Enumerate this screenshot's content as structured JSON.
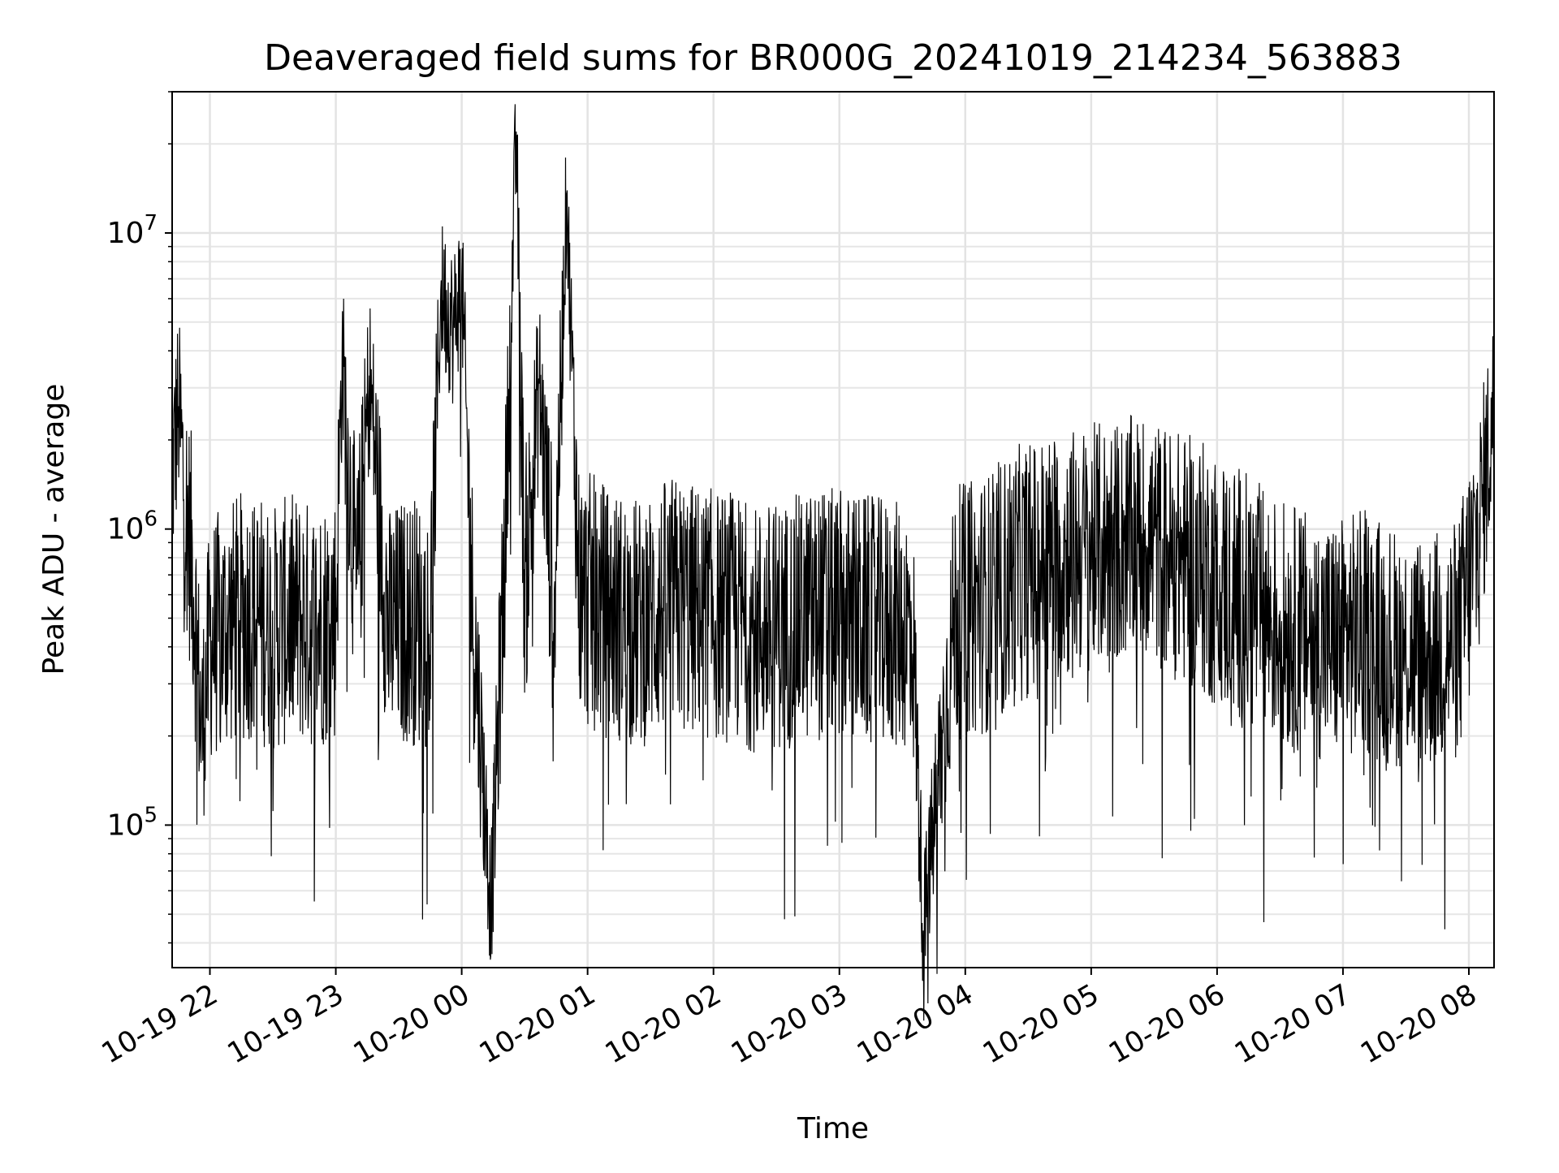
{
  "chart_data": {
    "type": "line",
    "title": "Deaveraged field sums for BR000G_20241019_214234_563883",
    "xlabel": "Time",
    "ylabel": "Peak ADU - average",
    "yscale": "log",
    "xlim": [
      "2024-10-19 21:42",
      "2024-10-20 08:12"
    ],
    "ylim": [
      33000,
      30000000
    ],
    "grid": true,
    "x_tick_labels": [
      "10-19 22",
      "10-19 23",
      "10-20 00",
      "10-20 01",
      "10-20 02",
      "10-20 03",
      "10-20 04",
      "10-20 05",
      "10-20 06",
      "10-20 07",
      "10-20 08"
    ],
    "y_tick_labels": [
      {
        "value": 100000,
        "base": "10",
        "exp": "5"
      },
      {
        "value": 1000000,
        "base": "10",
        "exp": "6"
      },
      {
        "value": 10000000,
        "base": "10",
        "exp": "7"
      }
    ],
    "series_color": "#000000",
    "series": [
      {
        "points": [
          [
            "2024-10-19 21:42",
            1500000
          ],
          [
            "2024-10-19 21:45",
            2600000
          ],
          [
            "2024-10-19 21:48",
            1300000
          ],
          [
            "2024-10-19 21:52",
            700000
          ],
          [
            "2024-10-19 21:56",
            200000
          ],
          [
            "2024-10-19 22:00",
            420000
          ],
          [
            "2024-10-19 22:10",
            480000
          ],
          [
            "2024-10-19 22:20",
            520000
          ],
          [
            "2024-10-19 22:30",
            460000
          ],
          [
            "2024-10-19 22:40",
            500000
          ],
          [
            "2024-10-19 22:50",
            470000
          ],
          [
            "2024-10-19 23:00",
            520000
          ],
          [
            "2024-10-19 23:03",
            3800000
          ],
          [
            "2024-10-19 23:10",
            560000
          ],
          [
            "2024-10-19 23:16",
            3300000
          ],
          [
            "2024-10-19 23:25",
            450000
          ],
          [
            "2024-10-19 23:35",
            500000
          ],
          [
            "2024-10-19 23:45",
            470000
          ],
          [
            "2024-10-19 23:50",
            6400000
          ],
          [
            "2024-10-19 23:56",
            4800000
          ],
          [
            "2024-10-20 00:00",
            7000000
          ],
          [
            "2024-10-20 00:05",
            580000
          ],
          [
            "2024-10-20 00:14",
            52000
          ],
          [
            "2024-10-20 00:20",
            650000
          ],
          [
            "2024-10-20 00:26",
            22000000
          ],
          [
            "2024-10-20 00:30",
            620000
          ],
          [
            "2024-10-20 00:37",
            3100000
          ],
          [
            "2024-10-20 00:44",
            540000
          ],
          [
            "2024-10-20 00:50",
            13500000
          ],
          [
            "2024-10-20 00:56",
            600000
          ],
          [
            "2024-10-20 01:10",
            520000
          ],
          [
            "2024-10-20 01:25",
            480000
          ],
          [
            "2024-10-20 01:40",
            560000
          ],
          [
            "2024-10-20 01:55",
            520000
          ],
          [
            "2024-10-20 02:10",
            500000
          ],
          [
            "2024-10-20 02:20",
            460000
          ],
          [
            "2024-10-20 02:35",
            480000
          ],
          [
            "2024-10-20 02:50",
            520000
          ],
          [
            "2024-10-20 03:05",
            500000
          ],
          [
            "2024-10-20 03:20",
            480000
          ],
          [
            "2024-10-20 03:35",
            460000
          ],
          [
            "2024-10-20 03:40",
            44000
          ],
          [
            "2024-10-20 03:55",
            520000
          ],
          [
            "2024-10-20 04:10",
            560000
          ],
          [
            "2024-10-20 04:25",
            700000
          ],
          [
            "2024-10-20 04:40",
            800000
          ],
          [
            "2024-10-20 04:55",
            850000
          ],
          [
            "2024-10-20 05:10",
            900000
          ],
          [
            "2024-10-20 05:25",
            950000
          ],
          [
            "2024-10-20 05:40",
            820000
          ],
          [
            "2024-10-20 05:55",
            720000
          ],
          [
            "2024-10-20 06:10",
            600000
          ],
          [
            "2024-10-20 06:25",
            500000
          ],
          [
            "2024-10-20 06:40",
            450000
          ],
          [
            "2024-10-20 06:55",
            420000
          ],
          [
            "2024-10-20 07:10",
            450000
          ],
          [
            "2024-10-20 07:25",
            400000
          ],
          [
            "2024-10-20 07:40",
            380000
          ],
          [
            "2024-10-20 07:55",
            420000
          ],
          [
            "2024-10-20 08:05",
            1000000
          ],
          [
            "2024-10-20 08:12",
            2600000
          ]
        ]
      }
    ]
  }
}
